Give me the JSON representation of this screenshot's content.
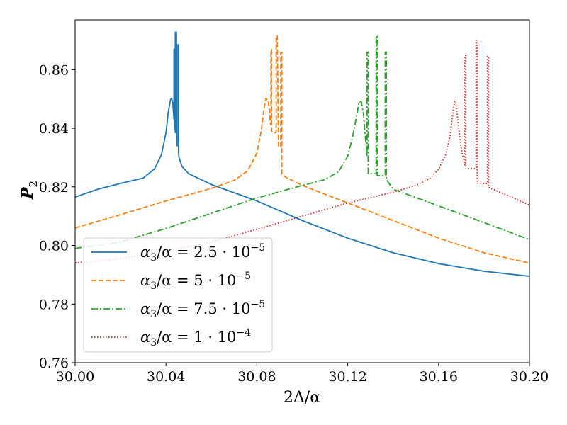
{
  "chart_data": {
    "type": "line",
    "title": "",
    "xlabel": "2Δ/α",
    "ylabel": "P",
    "ylabel_sub": "2",
    "xlim": [
      30.0,
      30.2
    ],
    "ylim": [
      0.76,
      0.877
    ],
    "xticks": [
      30.0,
      30.04,
      30.08,
      30.12,
      30.16,
      30.2
    ],
    "xtick_labels": [
      "30.00",
      "30.04",
      "30.08",
      "30.12",
      "30.16",
      "30.20"
    ],
    "yticks": [
      0.76,
      0.78,
      0.8,
      0.82,
      0.84,
      0.86
    ],
    "ytick_labels": [
      "0.76",
      "0.78",
      "0.80",
      "0.82",
      "0.84",
      "0.86"
    ],
    "grid": false,
    "legend_position": "bottom-left",
    "series": [
      {
        "name": "α3/α = 2.5·10^-5",
        "label_prefix": "α",
        "label_sub": "3",
        "label_mid": "/α = 2.5 · 10",
        "label_exp": "−5",
        "color": "#1f77b4",
        "dash": "solid",
        "x": [
          30.0,
          30.01,
          30.02,
          30.03,
          30.035,
          30.038,
          30.04,
          30.041,
          30.042,
          30.0425,
          30.043,
          30.0435,
          30.0435,
          30.0437,
          30.0437,
          30.0441,
          30.0441,
          30.0446,
          30.0446,
          30.0449,
          30.0449,
          30.0455,
          30.0455,
          30.0457,
          30.0457,
          30.047,
          30.05,
          30.06,
          30.08,
          30.1,
          30.12,
          30.14,
          30.16,
          30.18,
          30.2
        ],
        "y": [
          0.8165,
          0.8192,
          0.8212,
          0.823,
          0.8262,
          0.831,
          0.8385,
          0.8455,
          0.8498,
          0.8502,
          0.8485,
          0.843,
          0.867,
          0.867,
          0.843,
          0.8385,
          0.8728,
          0.8728,
          0.838,
          0.834,
          0.8685,
          0.8685,
          0.832,
          0.8302,
          0.8302,
          0.827,
          0.8245,
          0.8208,
          0.8152,
          0.8085,
          0.8025,
          0.7975,
          0.7938,
          0.7912,
          0.7895
        ]
      },
      {
        "name": "α3/α = 5·10^-5",
        "label_prefix": "α",
        "label_sub": "3",
        "label_mid": "/α = 5 · 10",
        "label_exp": "−5",
        "color": "#ff7f0e",
        "dash": "dashed",
        "x": [
          30.0,
          30.02,
          30.04,
          30.06,
          30.07,
          30.076,
          30.08,
          30.082,
          30.083,
          30.084,
          30.085,
          30.0855,
          30.086,
          30.0862,
          30.0862,
          30.0865,
          30.0865,
          30.087,
          30.0885,
          30.0885,
          30.089,
          30.0895,
          30.0905,
          30.0905,
          30.091,
          30.091,
          30.093,
          30.1,
          30.12,
          30.14,
          30.16,
          30.18,
          30.2
        ],
        "y": [
          0.806,
          0.8105,
          0.8152,
          0.8195,
          0.8222,
          0.8255,
          0.8315,
          0.8395,
          0.846,
          0.8502,
          0.8495,
          0.846,
          0.8412,
          0.8412,
          0.8668,
          0.8668,
          0.839,
          0.8385,
          0.8385,
          0.8715,
          0.8715,
          0.834,
          0.8335,
          0.8658,
          0.8658,
          0.8242,
          0.8232,
          0.8205,
          0.8145,
          0.8085,
          0.8025,
          0.7975,
          0.794
        ]
      },
      {
        "name": "α3/α = 7.5·10^-5",
        "label_prefix": "α",
        "label_sub": "3",
        "label_mid": "/α = 7.5 · 10",
        "label_exp": "−5",
        "color": "#2ca02c",
        "dash": "dashdot",
        "x": [
          30.0,
          30.02,
          30.04,
          30.06,
          30.08,
          30.1,
          30.11,
          30.116,
          30.12,
          30.122,
          30.124,
          30.125,
          30.126,
          30.127,
          30.1275,
          30.128,
          30.1285,
          30.1285,
          30.129,
          30.129,
          30.1325,
          30.1325,
          30.133,
          30.133,
          30.1365,
          30.1365,
          30.137,
          30.137,
          30.14,
          30.16,
          30.18,
          30.2
        ],
        "y": [
          0.799,
          0.8012,
          0.8058,
          0.811,
          0.8162,
          0.8205,
          0.8225,
          0.8252,
          0.8305,
          0.8365,
          0.8445,
          0.849,
          0.849,
          0.8445,
          0.839,
          0.835,
          0.8305,
          0.866,
          0.866,
          0.8245,
          0.8245,
          0.8715,
          0.8715,
          0.8238,
          0.8238,
          0.866,
          0.866,
          0.8225,
          0.8192,
          0.8135,
          0.8078,
          0.802
        ]
      },
      {
        "name": "α3/α = 1·10^-4",
        "label_prefix": "α",
        "label_sub": "3",
        "label_mid": "/α = 1 · 10",
        "label_exp": "−4",
        "color": "#d62728",
        "dash": "dotted",
        "x": [
          30.0,
          30.02,
          30.04,
          30.06,
          30.08,
          30.1,
          30.12,
          30.14,
          30.15,
          30.156,
          30.16,
          30.163,
          30.165,
          30.166,
          30.167,
          30.1675,
          30.168,
          30.169,
          30.17,
          30.171,
          30.1715,
          30.1715,
          30.172,
          30.172,
          30.1765,
          30.1765,
          30.177,
          30.177,
          30.1815,
          30.1815,
          30.182,
          30.182,
          30.19,
          30.2
        ],
        "y": [
          0.794,
          0.7955,
          0.798,
          0.8012,
          0.8055,
          0.81,
          0.8145,
          0.8182,
          0.8205,
          0.8228,
          0.826,
          0.8308,
          0.837,
          0.8435,
          0.849,
          0.8492,
          0.846,
          0.8395,
          0.833,
          0.8292,
          0.8275,
          0.8648,
          0.8648,
          0.8262,
          0.8262,
          0.87,
          0.87,
          0.8212,
          0.8212,
          0.8645,
          0.8645,
          0.8198,
          0.8172,
          0.8138
        ]
      }
    ]
  }
}
